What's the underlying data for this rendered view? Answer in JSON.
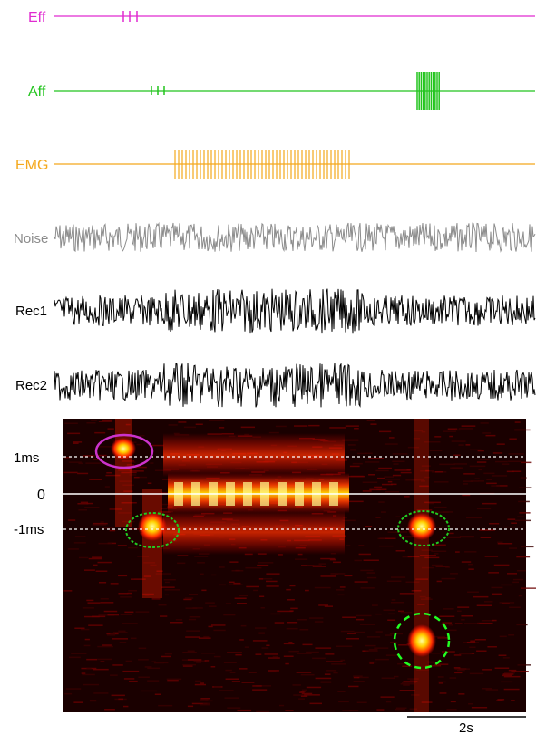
{
  "traces": [
    {
      "id": "eff",
      "label": "Eff",
      "color": "#e02bd0"
    },
    {
      "id": "aff",
      "label": "Aff",
      "color": "#22c41e"
    },
    {
      "id": "emg",
      "label": "EMG",
      "color": "#f4a81c"
    },
    {
      "id": "noise",
      "label": "Noise",
      "color": "#8c8c8c"
    },
    {
      "id": "rec1",
      "label": "Rec1",
      "color": "#000000"
    },
    {
      "id": "rec2",
      "label": "Rec2",
      "color": "#000000"
    }
  ],
  "correlogram": {
    "lag_labels": {
      "plus": "1ms",
      "zero": "0",
      "minus": "-1ms"
    },
    "background": "#1a0000",
    "circle_colors": {
      "efferent": "#cc33cc",
      "afferent": "#22cc22"
    }
  },
  "scale_bar": {
    "label": "2s"
  }
}
